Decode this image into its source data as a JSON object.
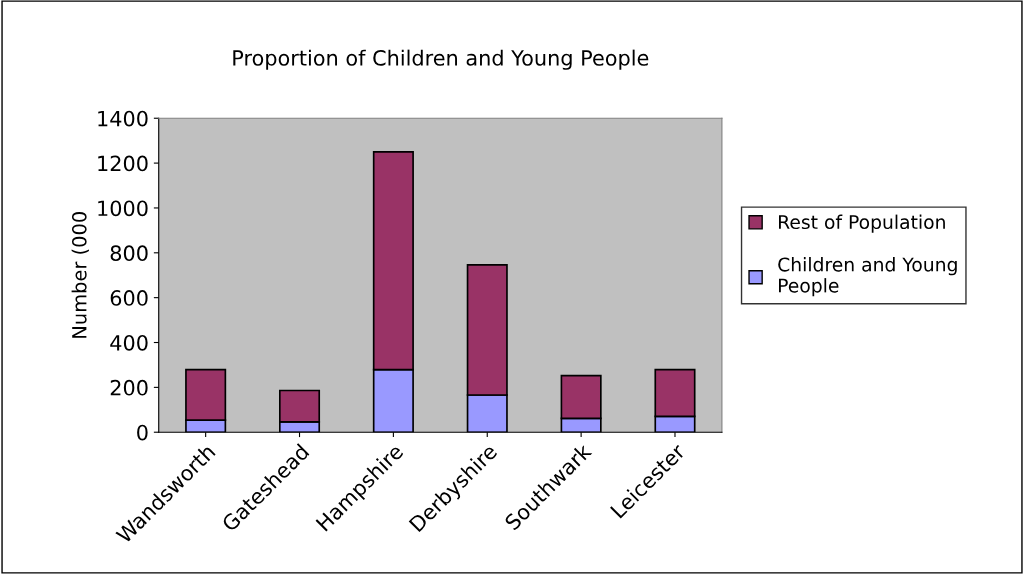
{
  "chart_data": {
    "type": "bar",
    "stacked": true,
    "title": "Proportion of Children and Young People",
    "ylabel": "Number (000",
    "categories": [
      "Wandsworth",
      "Gateshead",
      "Hampshire",
      "Derbyshire",
      "Southwark",
      "Leicester"
    ],
    "series": [
      {
        "name": "Children and Young People",
        "color": "#9999ff",
        "values": [
          54,
          46,
          279,
          166,
          62,
          71
        ]
      },
      {
        "name": "Rest of Population",
        "color": "#993366",
        "values": [
          225,
          140,
          971,
          580,
          190,
          208
        ]
      }
    ],
    "ylim": [
      0,
      1400
    ],
    "yticks": [
      0,
      200,
      400,
      600,
      800,
      1000,
      1200,
      1400
    ],
    "grid": false,
    "legend": "right"
  }
}
